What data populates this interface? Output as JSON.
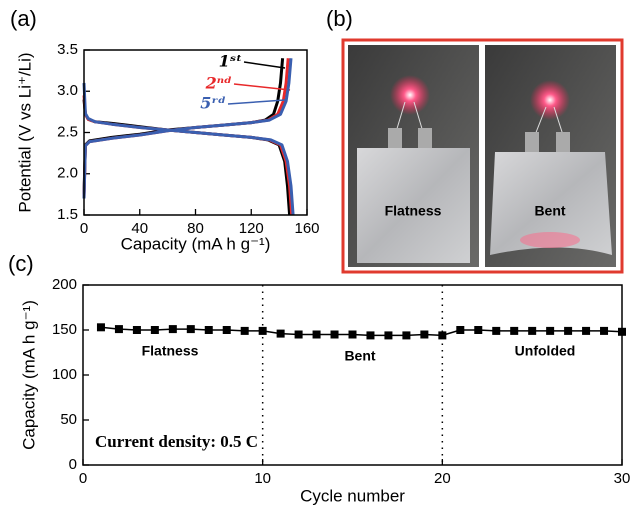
{
  "chart_data": [
    {
      "type": "line",
      "panel_label": "(a)",
      "xlabel": "Capacity (mA h g⁻¹)",
      "ylabel": "Potential (V vs Li⁺/Li)",
      "xlim": [
        0,
        160
      ],
      "ylim": [
        1.5,
        3.5
      ],
      "xticks": [
        0,
        40,
        80,
        120,
        160
      ],
      "yticks": [
        1.5,
        {
          "value": 2,
          "label": "2.0"
        },
        2.5,
        {
          "value": 3,
          "label": "3.0"
        },
        3.5
      ],
      "series": [
        {
          "name": "1ˢᵗ",
          "color": "#000000",
          "x": [
            0,
            1,
            3,
            8,
            20,
            40,
            60,
            80,
            100,
            120,
            132,
            140,
            144,
            146,
            147.5,
            null,
            0,
            1,
            4,
            20,
            40,
            60,
            80,
            100,
            120,
            130,
            136,
            139,
            141,
            142.5
          ],
          "values": [
            2.9,
            2.72,
            2.66,
            2.63,
            2.61,
            2.57,
            2.53,
            2.5,
            2.47,
            2.44,
            2.41,
            2.35,
            2.15,
            1.85,
            1.5,
            null,
            1.75,
            2.35,
            2.4,
            2.44,
            2.48,
            2.53,
            2.56,
            2.59,
            2.62,
            2.65,
            2.72,
            2.88,
            3.1,
            3.4
          ]
        },
        {
          "name": "2ⁿᵈ",
          "color": "#e8282a",
          "x": [
            0,
            1,
            3,
            8,
            20,
            40,
            60,
            80,
            100,
            120,
            133,
            141,
            145,
            147.5,
            149,
            null,
            0,
            1,
            4,
            20,
            40,
            60,
            80,
            100,
            120,
            132,
            139,
            143,
            145,
            146.5
          ],
          "values": [
            2.95,
            2.72,
            2.66,
            2.63,
            2.6,
            2.56,
            2.53,
            2.5,
            2.47,
            2.44,
            2.41,
            2.35,
            2.15,
            1.85,
            1.5,
            null,
            1.7,
            2.34,
            2.39,
            2.43,
            2.47,
            2.52,
            2.56,
            2.59,
            2.62,
            2.65,
            2.72,
            2.88,
            3.1,
            3.4
          ]
        },
        {
          "name": "5ʳᵈ",
          "color": "#3a5fb0",
          "x": [
            0,
            1,
            3,
            8,
            20,
            40,
            60,
            80,
            100,
            120,
            134,
            142,
            146,
            148.5,
            150,
            null,
            0,
            1,
            4,
            20,
            40,
            60,
            80,
            100,
            120,
            133,
            141,
            145,
            147,
            148.5
          ],
          "values": [
            3.1,
            2.73,
            2.67,
            2.63,
            2.6,
            2.56,
            2.53,
            2.5,
            2.47,
            2.44,
            2.41,
            2.35,
            2.15,
            1.85,
            1.5,
            null,
            1.7,
            2.34,
            2.39,
            2.43,
            2.47,
            2.52,
            2.56,
            2.59,
            2.62,
            2.65,
            2.72,
            2.88,
            3.1,
            3.4
          ]
        }
      ]
    },
    {
      "type": "line",
      "panel_label": "(c)",
      "xlabel": "Cycle number",
      "ylabel": "Capacity (mA h g⁻¹)",
      "xlim": [
        0,
        30
      ],
      "ylim": [
        0,
        200
      ],
      "xticks": [
        0,
        10,
        20,
        30
      ],
      "yticks": [
        0,
        50,
        100,
        150,
        200
      ],
      "vlines": [
        10,
        20
      ],
      "annotations": [
        "Flatness",
        "Bent",
        "Unfolded",
        "Current density: 0.5 C"
      ],
      "series": [
        {
          "name": null,
          "color": "#000000",
          "x": [
            1,
            2,
            3,
            4,
            5,
            6,
            7,
            8,
            9,
            10,
            11,
            12,
            13,
            14,
            15,
            16,
            17,
            18,
            19,
            20,
            21,
            22,
            23,
            24,
            25,
            26,
            27,
            28,
            29,
            30
          ],
          "values": [
            153,
            151,
            150,
            150,
            151,
            151,
            150,
            150,
            149,
            149,
            146,
            145,
            145,
            145,
            145,
            144,
            144,
            144,
            145,
            144,
            150,
            150,
            149,
            149,
            149,
            149,
            149,
            149,
            149,
            148
          ]
        }
      ]
    }
  ],
  "photo": {
    "panel_label": "(b)",
    "captions": [
      "Flatness",
      "Bent"
    ]
  }
}
